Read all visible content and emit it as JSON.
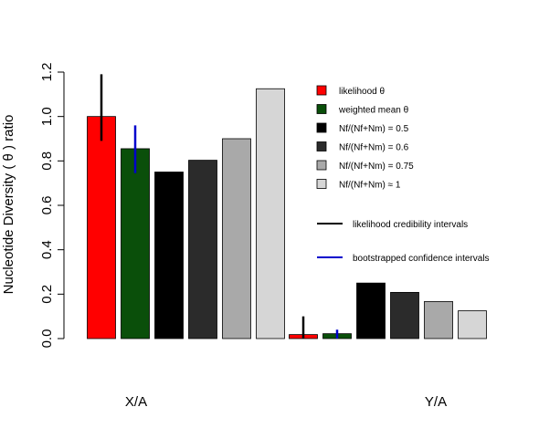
{
  "chart_data": {
    "type": "bar",
    "title": "",
    "ylabel": "Nucleotide Diversity ( θ ) ratio",
    "ylim": [
      0,
      1.2
    ],
    "yticks": [
      "0.0",
      "0.2",
      "0.4",
      "0.6",
      "0.8",
      "1.0",
      "1.2"
    ],
    "groups": [
      "X/A",
      "Y/A"
    ],
    "grid": false,
    "series": [
      {
        "name": "likelihood θ",
        "color": "#ff0000",
        "values": [
          1.0,
          0.018
        ]
      },
      {
        "name": "weighted mean θ",
        "color": "#0a4f0a",
        "values": [
          0.855,
          0.022
        ]
      },
      {
        "name": "Nf/(Nf+Nm) = 0.5",
        "color": "#000000",
        "values": [
          0.75,
          0.25
        ]
      },
      {
        "name": "Nf/(Nf+Nm) = 0.6",
        "color": "#2b2b2b",
        "values": [
          0.803,
          0.208
        ]
      },
      {
        "name": "Nf/(Nf+Nm) = 0.75",
        "color": "#a9a9a9",
        "values": [
          0.9,
          0.167
        ]
      },
      {
        "name": "Nf/(Nf+Nm) ≈ 1",
        "color": "#d6d6d6",
        "values": [
          1.125,
          0.125
        ]
      }
    ],
    "intervals": [
      {
        "name": "likelihood credibility intervals",
        "color": "#000000",
        "series_index": 0,
        "ranges": [
          [
            0.89,
            1.19
          ],
          [
            0.0,
            0.1
          ]
        ]
      },
      {
        "name": "bootstrapped confidence intervals",
        "color": "#0000cc",
        "series_index": 1,
        "ranges": [
          [
            0.745,
            0.96
          ],
          [
            0.0,
            0.04
          ]
        ]
      }
    ],
    "legend_position": "right"
  }
}
